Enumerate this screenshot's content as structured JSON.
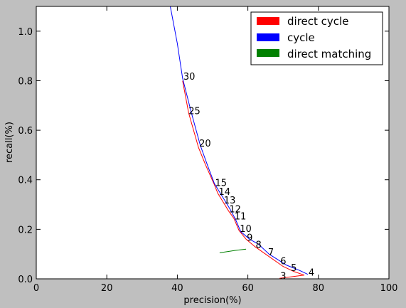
{
  "chart_data": {
    "type": "line",
    "xlabel": "precision(%)",
    "ylabel": "recall(%)",
    "xlim": [
      0,
      100
    ],
    "ylim": [
      0,
      1.1
    ],
    "x_ticks": [
      0,
      20,
      40,
      60,
      80,
      100
    ],
    "y_ticks": [
      0.0,
      0.2,
      0.4,
      0.6,
      0.8,
      1.0
    ],
    "x_tick_labels": [
      "0",
      "20",
      "40",
      "60",
      "80",
      "100"
    ],
    "y_tick_labels": [
      "0.0",
      "0.2",
      "0.4",
      "0.6",
      "0.8",
      "1.0"
    ],
    "grid": false,
    "legend_position": "top-right",
    "series": [
      {
        "name": "direct cycle",
        "color": "#ff0000",
        "points": [
          [
            41.5,
            0.8
          ],
          [
            43.2,
            0.67
          ],
          [
            46.0,
            0.53
          ],
          [
            48.0,
            0.46
          ],
          [
            50.5,
            0.38
          ],
          [
            51.5,
            0.345
          ],
          [
            53.0,
            0.31
          ],
          [
            54.5,
            0.275
          ],
          [
            56.0,
            0.245
          ],
          [
            57.5,
            0.195
          ],
          [
            59.5,
            0.16
          ],
          [
            62.0,
            0.13
          ],
          [
            65.0,
            0.1
          ],
          [
            70.0,
            0.05
          ],
          [
            73.0,
            0.03
          ],
          [
            76.0,
            0.015
          ],
          [
            69.0,
            0.002
          ]
        ]
      },
      {
        "name": "cycle",
        "color": "#0000ff",
        "points": [
          [
            38.0,
            1.1
          ],
          [
            40.0,
            0.95
          ],
          [
            41.5,
            0.81
          ],
          [
            44.0,
            0.67
          ],
          [
            46.5,
            0.54
          ],
          [
            48.5,
            0.46
          ],
          [
            50.5,
            0.385
          ],
          [
            52.0,
            0.35
          ],
          [
            53.5,
            0.315
          ],
          [
            55.0,
            0.28
          ],
          [
            56.5,
            0.24
          ],
          [
            58.0,
            0.19
          ],
          [
            60.5,
            0.16
          ],
          [
            63.0,
            0.14
          ],
          [
            66.0,
            0.1
          ],
          [
            71.0,
            0.055
          ],
          [
            74.5,
            0.035
          ],
          [
            77.0,
            0.018
          ]
        ]
      },
      {
        "name": "direct matching",
        "color": "#008000",
        "points": [
          [
            52.0,
            0.105
          ],
          [
            56.5,
            0.115
          ],
          [
            59.5,
            0.12
          ]
        ]
      }
    ],
    "annotations": [
      {
        "text": "30",
        "x": 41.5,
        "y": 0.81
      },
      {
        "text": "25",
        "x": 43.0,
        "y": 0.67
      },
      {
        "text": "20",
        "x": 46.0,
        "y": 0.54
      },
      {
        "text": "15",
        "x": 50.5,
        "y": 0.38
      },
      {
        "text": "14",
        "x": 51.5,
        "y": 0.345
      },
      {
        "text": "13",
        "x": 53.0,
        "y": 0.31
      },
      {
        "text": "12",
        "x": 54.5,
        "y": 0.275
      },
      {
        "text": "11",
        "x": 56.0,
        "y": 0.245
      },
      {
        "text": "10",
        "x": 57.5,
        "y": 0.195
      },
      {
        "text": "9",
        "x": 59.5,
        "y": 0.16
      },
      {
        "text": "8",
        "x": 62.0,
        "y": 0.13
      },
      {
        "text": "7",
        "x": 65.5,
        "y": 0.1
      },
      {
        "text": "6",
        "x": 69.0,
        "y": 0.065
      },
      {
        "text": "5",
        "x": 72.0,
        "y": 0.038
      },
      {
        "text": "4",
        "x": 77.0,
        "y": 0.018
      },
      {
        "text": "3",
        "x": 69.0,
        "y": 0.005
      }
    ]
  }
}
